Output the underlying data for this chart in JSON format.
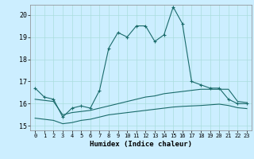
{
  "xlabel": "Humidex (Indice chaleur)",
  "background_color": "#cceeff",
  "line_color": "#1a6b6b",
  "grid_color": "#aadddd",
  "xlim": [
    -0.5,
    23.5
  ],
  "ylim": [
    14.8,
    20.45
  ],
  "yticks": [
    15,
    16,
    17,
    18,
    19,
    20
  ],
  "xticks": [
    0,
    1,
    2,
    3,
    4,
    5,
    6,
    7,
    8,
    9,
    10,
    11,
    12,
    13,
    14,
    15,
    16,
    17,
    18,
    19,
    20,
    21,
    22,
    23
  ],
  "series1_x": [
    0,
    1,
    2,
    3,
    4,
    5,
    6,
    7,
    8,
    9,
    10,
    11,
    12,
    13,
    14,
    15,
    16,
    17,
    18,
    19,
    20,
    21,
    22,
    23
  ],
  "series1_y": [
    16.7,
    16.3,
    16.2,
    15.4,
    15.8,
    15.9,
    15.8,
    16.6,
    18.5,
    19.2,
    19.0,
    19.5,
    19.5,
    18.8,
    19.1,
    20.35,
    19.6,
    17.0,
    16.85,
    16.7,
    16.7,
    16.2,
    16.0,
    16.0
  ],
  "series2_x": [
    0,
    1,
    2,
    3,
    4,
    5,
    6,
    7,
    8,
    9,
    10,
    11,
    12,
    13,
    14,
    15,
    16,
    17,
    18,
    19,
    20,
    21,
    22,
    23
  ],
  "series2_y": [
    16.2,
    16.15,
    16.1,
    15.5,
    15.6,
    15.65,
    15.7,
    15.8,
    15.9,
    16.0,
    16.1,
    16.2,
    16.3,
    16.35,
    16.45,
    16.5,
    16.55,
    16.6,
    16.65,
    16.65,
    16.65,
    16.65,
    16.1,
    16.05
  ],
  "series3_x": [
    0,
    1,
    2,
    3,
    4,
    5,
    6,
    7,
    8,
    9,
    10,
    11,
    12,
    13,
    14,
    15,
    16,
    17,
    18,
    19,
    20,
    21,
    22,
    23
  ],
  "series3_y": [
    15.35,
    15.3,
    15.25,
    15.1,
    15.15,
    15.25,
    15.3,
    15.4,
    15.5,
    15.55,
    15.6,
    15.65,
    15.7,
    15.75,
    15.8,
    15.85,
    15.88,
    15.9,
    15.92,
    15.95,
    15.98,
    15.92,
    15.82,
    15.78
  ]
}
